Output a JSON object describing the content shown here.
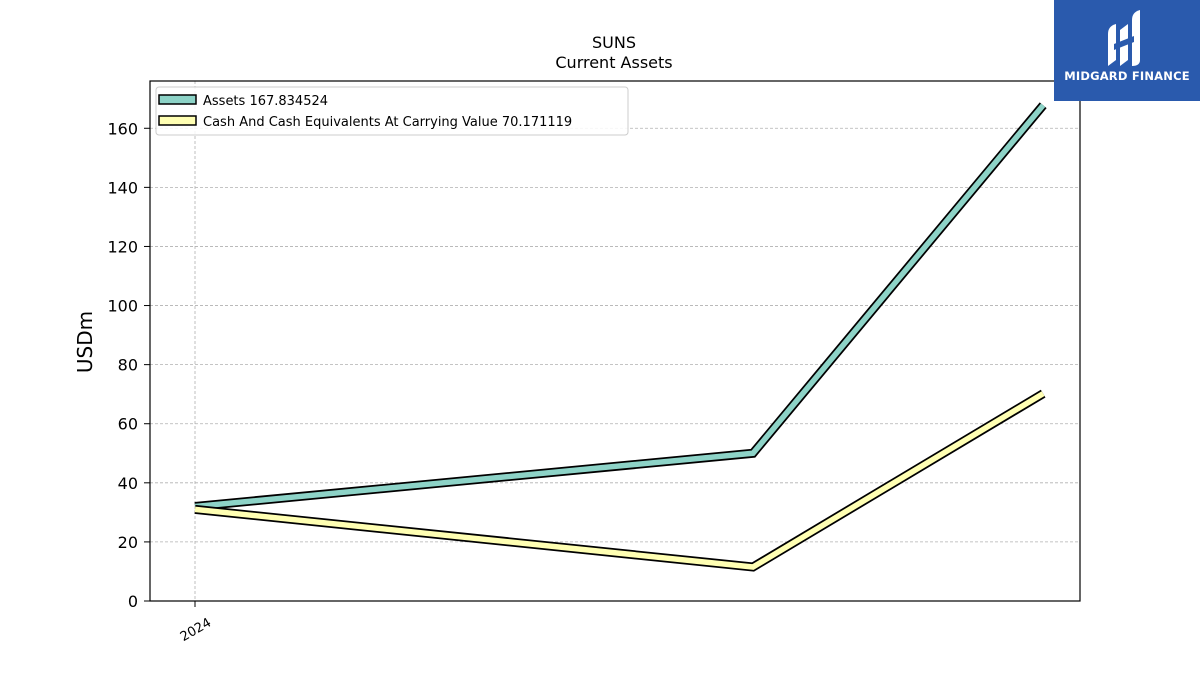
{
  "logo": {
    "name": "MIDGARD FINANCE",
    "bg_color": "#2a5aad"
  },
  "chart_data": {
    "type": "line",
    "title": "SUNS",
    "subtitle": "Current  Assets",
    "ylabel": "USDm",
    "xlabel": "",
    "ylim": [
      0,
      176
    ],
    "yticks": [
      0,
      20,
      40,
      60,
      80,
      100,
      120,
      140,
      160
    ],
    "x_tick_labels": [
      "2024"
    ],
    "grid": true,
    "legend_position": "top-left",
    "series": [
      {
        "name": "Assets",
        "legend_label": "Assets  167.834524",
        "color": "#8dd3c7",
        "points": [
          {
            "x": 0.0,
            "y": 32.0
          },
          {
            "x": 1.0,
            "y": 50.0
          },
          {
            "x": 1.52,
            "y": 167.8
          }
        ]
      },
      {
        "name": "Cash And Cash Equivalents At Carrying Value",
        "legend_label": "Cash And Cash Equivalents At Carrying Value  70.171119",
        "color": "#ffffb3",
        "points": [
          {
            "x": 0.0,
            "y": 31.0
          },
          {
            "x": 1.0,
            "y": 11.5
          },
          {
            "x": 1.52,
            "y": 70.2
          }
        ]
      }
    ]
  }
}
